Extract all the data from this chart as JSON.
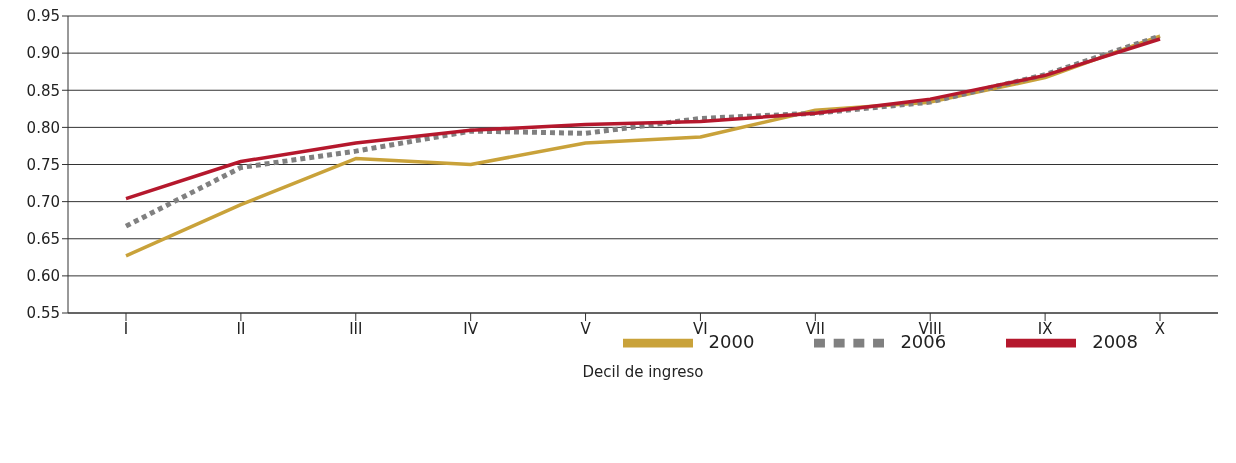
{
  "chart_data": {
    "type": "line",
    "xlabel": "Decil de ingreso",
    "categories": [
      "I",
      "II",
      "III",
      "IV",
      "V",
      "VI",
      "VII",
      "VIII",
      "IX",
      "X"
    ],
    "series": [
      {
        "name": "2000",
        "color": "#c9a23a",
        "line_style": "solid",
        "values": [
          0.627,
          0.696,
          0.758,
          0.75,
          0.779,
          0.787,
          0.823,
          0.834,
          0.867,
          0.923
        ]
      },
      {
        "name": "2006",
        "color": "#808080",
        "line_style": "dotted",
        "values": [
          0.667,
          0.746,
          0.768,
          0.795,
          0.792,
          0.812,
          0.819,
          0.834,
          0.871,
          0.923
        ]
      },
      {
        "name": "2008",
        "color": "#b5182d",
        "line_style": "solid",
        "values": [
          0.704,
          0.754,
          0.779,
          0.796,
          0.804,
          0.808,
          0.819,
          0.838,
          0.87,
          0.919
        ]
      }
    ],
    "ylim": [
      0.55,
      0.95
    ],
    "yticks": [
      0.55,
      {
        "value": 0.6,
        "label": "0.60"
      },
      0.65,
      {
        "value": 0.7,
        "label": "0.70"
      },
      0.75,
      {
        "value": 0.8,
        "label": "0.80"
      },
      0.85,
      {
        "value": 0.9,
        "label": "0.90"
      },
      0.95
    ],
    "grid": "y",
    "legend": "bottom right",
    "marker": "none"
  }
}
